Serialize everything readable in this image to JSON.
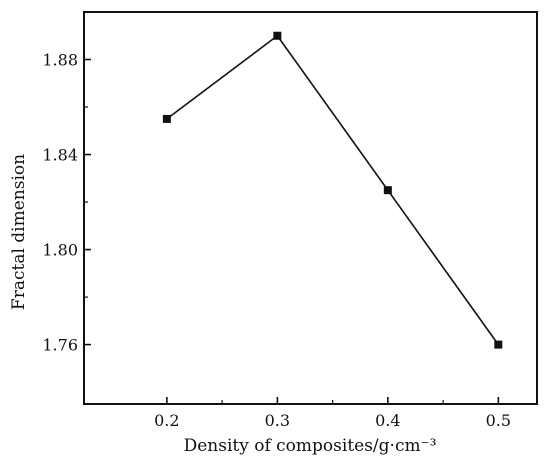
{
  "chart_data": {
    "type": "line",
    "xlabel": "Density of composites/g·cm⁻³",
    "ylabel": "Fractal dimension",
    "x": [
      0.2,
      0.3,
      0.4,
      0.5
    ],
    "series": [
      {
        "values": [
          1.855,
          1.89,
          1.825,
          1.76
        ]
      }
    ],
    "xlim": [
      0.125,
      0.535
    ],
    "ylim": [
      1.735,
      1.9
    ],
    "xticks": [
      0.2,
      0.3,
      0.4,
      0.5
    ],
    "xtick_labels": [
      "0.2",
      "0.3",
      "0.4",
      "0.5"
    ],
    "yticks": [
      1.76,
      1.8,
      1.84,
      1.88
    ],
    "ytick_labels": [
      "1.76",
      "1.80",
      "1.84",
      "1.88"
    ],
    "grid": false,
    "marker": "square",
    "line_color": "#111111",
    "marker_color": "#111111"
  }
}
